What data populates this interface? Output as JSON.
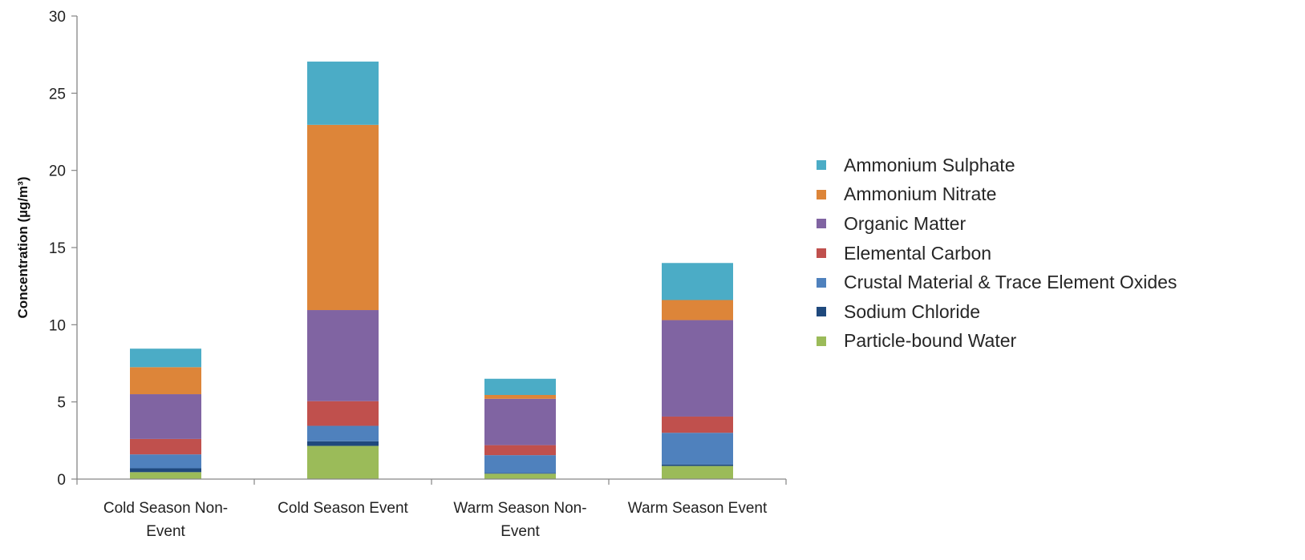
{
  "chart_data": {
    "type": "bar",
    "stacked": true,
    "title": "",
    "xlabel": "",
    "ylabel": "Concentration (µg/m³)",
    "ylim": [
      0,
      30
    ],
    "yticks": [
      0,
      5,
      10,
      15,
      20,
      25,
      30
    ],
    "grid": false,
    "legend_position": "right",
    "categories": [
      [
        "Cold Season Non-",
        "Event"
      ],
      [
        "Cold Season Event"
      ],
      [
        "Warm Season Non-",
        "Event"
      ],
      [
        "Warm Season Event"
      ]
    ],
    "series": [
      {
        "name": "Particle-bound Water",
        "color": "#9bbb59",
        "values": [
          0.45,
          2.15,
          0.35,
          0.85
        ]
      },
      {
        "name": "Sodium Chloride",
        "color": "#1f497d",
        "values": [
          0.25,
          0.3,
          0.05,
          0.1
        ]
      },
      {
        "name": "Crustal Material & Trace Element Oxides",
        "color": "#4f81bd",
        "values": [
          0.9,
          1.0,
          1.15,
          2.05
        ]
      },
      {
        "name": "Elemental Carbon",
        "color": "#c0504d",
        "values": [
          1.0,
          1.6,
          0.65,
          1.05
        ]
      },
      {
        "name": "Organic Matter",
        "color": "#8064a2",
        "values": [
          2.9,
          5.9,
          3.0,
          6.25
        ]
      },
      {
        "name": "Ammonium Nitrate",
        "color": "#dd8539",
        "values": [
          1.75,
          12.0,
          0.25,
          1.3
        ]
      },
      {
        "name": "Ammonium Sulphate",
        "color": "#4bacc6",
        "values": [
          1.2,
          4.1,
          1.05,
          2.4
        ]
      }
    ],
    "legend_order": [
      6,
      5,
      4,
      3,
      2,
      1,
      0
    ]
  }
}
